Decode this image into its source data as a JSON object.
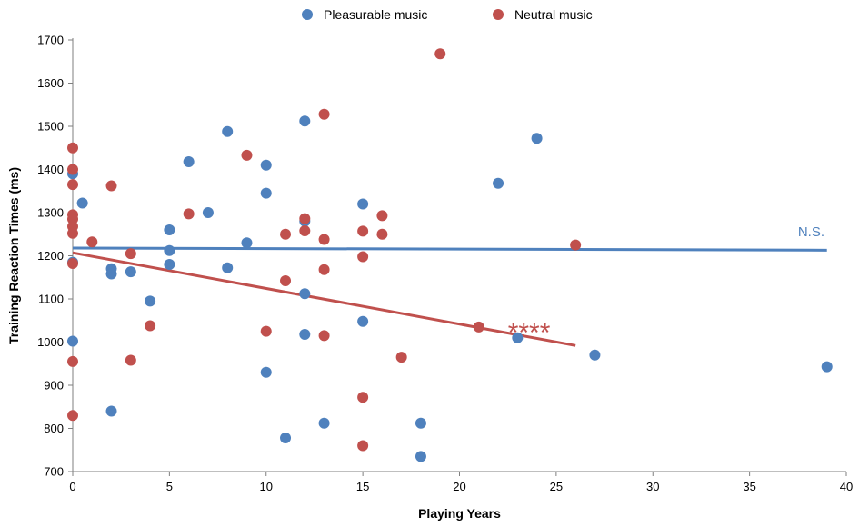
{
  "chart_data": {
    "type": "scatter",
    "xlabel": "Playing Years",
    "ylabel": "Training Reaction Times (ms)",
    "xlim": [
      0,
      40
    ],
    "ylim": [
      700,
      1700
    ],
    "xticks": [
      0,
      5,
      10,
      15,
      20,
      25,
      30,
      35,
      40
    ],
    "yticks": [
      700,
      800,
      900,
      1000,
      1100,
      1200,
      1300,
      1400,
      1500,
      1600,
      1700
    ],
    "grid": false,
    "legend_position": "top-center",
    "series": [
      {
        "name": "Pleasurable music",
        "color": "#4f81bd",
        "points": [
          [
            0,
            1002
          ],
          [
            0,
            1185
          ],
          [
            0,
            1390
          ],
          [
            0.5,
            1322
          ],
          [
            2,
            1170
          ],
          [
            2,
            1158
          ],
          [
            2,
            840
          ],
          [
            3,
            1163
          ],
          [
            4,
            1095
          ],
          [
            5,
            1260
          ],
          [
            5,
            1212
          ],
          [
            5,
            1180
          ],
          [
            6,
            1418
          ],
          [
            7,
            1300
          ],
          [
            8,
            1488
          ],
          [
            8,
            1172
          ],
          [
            9,
            1230
          ],
          [
            10,
            1410
          ],
          [
            10,
            1345
          ],
          [
            10,
            930
          ],
          [
            11,
            778
          ],
          [
            12,
            1512
          ],
          [
            12,
            1280
          ],
          [
            12,
            1112
          ],
          [
            12,
            1018
          ],
          [
            13,
            812
          ],
          [
            15,
            1320
          ],
          [
            15,
            1048
          ],
          [
            18,
            812
          ],
          [
            18,
            735
          ],
          [
            22,
            1368
          ],
          [
            23,
            1010
          ],
          [
            24,
            1472
          ],
          [
            27,
            970
          ],
          [
            39,
            943
          ]
        ],
        "trendline": {
          "x": [
            0,
            39
          ],
          "y": [
            1218,
            1213
          ]
        }
      },
      {
        "name": "Neutral music",
        "color": "#c0504d",
        "points": [
          [
            0,
            1450
          ],
          [
            0,
            1400
          ],
          [
            0,
            1365
          ],
          [
            0,
            1295
          ],
          [
            0,
            1285
          ],
          [
            0,
            1268
          ],
          [
            0,
            1252
          ],
          [
            0,
            1182
          ],
          [
            0,
            955
          ],
          [
            0,
            830
          ],
          [
            1,
            1232
          ],
          [
            2,
            1362
          ],
          [
            3,
            1205
          ],
          [
            3,
            958
          ],
          [
            4,
            1038
          ],
          [
            6,
            1297
          ],
          [
            9,
            1433
          ],
          [
            10,
            1025
          ],
          [
            11,
            1250
          ],
          [
            11,
            1142
          ],
          [
            12,
            1286
          ],
          [
            12,
            1258
          ],
          [
            13,
            1528
          ],
          [
            13,
            1238
          ],
          [
            13,
            1168
          ],
          [
            13,
            1015
          ],
          [
            15,
            1257
          ],
          [
            15,
            1198
          ],
          [
            15,
            872
          ],
          [
            15,
            760
          ],
          [
            16,
            1293
          ],
          [
            16,
            1250
          ],
          [
            17,
            965
          ],
          [
            19,
            1668
          ],
          [
            21,
            1035
          ],
          [
            26,
            1225
          ]
        ],
        "trendline": {
          "x": [
            0,
            26
          ],
          "y": [
            1207,
            992
          ]
        }
      }
    ],
    "annotations": [
      {
        "text": "N.S.",
        "x": 37.5,
        "y": 1228,
        "color": "#4f81bd"
      },
      {
        "text": "****",
        "x": 22.5,
        "y": 1010,
        "color": "#c0504d"
      }
    ]
  }
}
